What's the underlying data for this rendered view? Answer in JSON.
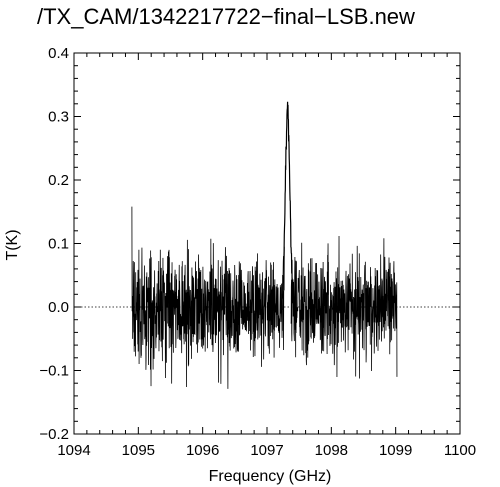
{
  "chart_data": {
    "type": "line",
    "title": "/TX_CAM/1342217722−final−LSB.new",
    "xlabel": "Frequency (GHz)",
    "ylabel": "T(K)",
    "xlim": [
      1094,
      1100
    ],
    "ylim": [
      -0.2,
      0.4
    ],
    "x_ticks": [
      1094,
      1095,
      1096,
      1097,
      1098,
      1099,
      1100
    ],
    "x_tick_labels": [
      "1094",
      "1095",
      "1096",
      "1097",
      "1098",
      "1099",
      "1100"
    ],
    "y_ticks": [
      -0.2,
      -0.1,
      0.0,
      0.1,
      0.2,
      0.3,
      0.4
    ],
    "y_tick_labels": [
      "−0.2",
      "−0.1",
      "0.0",
      "0.1",
      "0.2",
      "0.3",
      "0.4"
    ],
    "zero_line": true,
    "grid": false,
    "series": [
      {
        "x_range": [
          1094.9,
          1099.02
        ],
        "gap": [
          1097.27,
          1097.37
        ],
        "noise_sigma": 0.04,
        "peak_x": 1097.32,
        "peak_y": 0.305,
        "line_color": "#000000"
      }
    ]
  }
}
